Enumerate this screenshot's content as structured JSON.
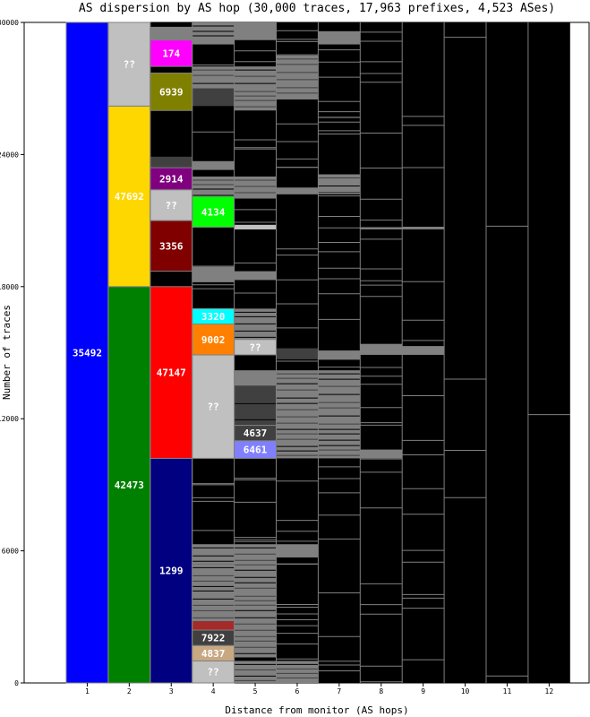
{
  "chart_data": {
    "type": "heatmap",
    "title": "AS dispersion by AS hop (30,000 traces, 17,963 prefixes, 4,523 ASes)",
    "xlabel": "Distance from monitor (AS hops)",
    "ylabel": "Number of traces",
    "ylim": [
      0,
      30000
    ],
    "y_ticks": [
      "0",
      "6000",
      "12000",
      "18000",
      "24000",
      "30000"
    ],
    "x_ticks": [
      "1",
      "2",
      "3",
      "4",
      "5",
      "6",
      "7",
      "8",
      "9",
      "10",
      "11",
      "12"
    ],
    "colors": {
      "background": "#000000",
      "separator": "#808080",
      "unknown": "#c0c0c0",
      "other_band": "#808080",
      "dark_band": "#404040"
    },
    "blocks": [
      {
        "hop": 1,
        "label": "35492",
        "y0": 0,
        "y1": 30000,
        "color": "#0000ff"
      },
      {
        "hop": 2,
        "label": "42473",
        "y0": 0,
        "y1": 18000,
        "color": "#008000"
      },
      {
        "hop": 2,
        "label": "47692",
        "y0": 18000,
        "y1": 26200,
        "color": "#ffd700"
      },
      {
        "hop": 2,
        "label": "??",
        "y0": 26200,
        "y1": 30000,
        "color": "#c0c0c0"
      },
      {
        "hop": 3,
        "label": "1299",
        "y0": 0,
        "y1": 10200,
        "color": "#000080"
      },
      {
        "hop": 3,
        "label": "47147",
        "y0": 10200,
        "y1": 18000,
        "color": "#ff0000"
      },
      {
        "hop": 3,
        "label": "3356",
        "y0": 18700,
        "y1": 21000,
        "color": "#800000"
      },
      {
        "hop": 3,
        "label": "??",
        "y0": 21000,
        "y1": 22400,
        "color": "#c0c0c0"
      },
      {
        "hop": 3,
        "label": "2914",
        "y0": 22400,
        "y1": 23400,
        "color": "#800080"
      },
      {
        "hop": 3,
        "label": "6939",
        "y0": 26000,
        "y1": 27700,
        "color": "#808000"
      },
      {
        "hop": 3,
        "label": "174",
        "y0": 28000,
        "y1": 29200,
        "color": "#ff00ff"
      },
      {
        "hop": 4,
        "label": "??",
        "y0": 0,
        "y1": 1000,
        "color": "#c0c0c0"
      },
      {
        "hop": 4,
        "label": "4837",
        "y0": 1000,
        "y1": 1700,
        "color": "#c8a882"
      },
      {
        "hop": 4,
        "label": "7922",
        "y0": 1700,
        "y1": 2400,
        "color": "#404040"
      },
      {
        "hop": 4,
        "label": "??",
        "y0": 10200,
        "y1": 14900,
        "color": "#c0c0c0"
      },
      {
        "hop": 4,
        "label": "9002",
        "y0": 14900,
        "y1": 16300,
        "color": "#ff8000"
      },
      {
        "hop": 4,
        "label": "3320",
        "y0": 16300,
        "y1": 17000,
        "color": "#00ffff"
      },
      {
        "hop": 4,
        "label": "4134",
        "y0": 20700,
        "y1": 22100,
        "color": "#00ff00"
      },
      {
        "hop": 5,
        "label": "6461",
        "y0": 10200,
        "y1": 11000,
        "color": "#8080ff"
      },
      {
        "hop": 5,
        "label": "4637",
        "y0": 11000,
        "y1": 11700,
        "color": "#404040"
      },
      {
        "hop": 5,
        "label": "??",
        "y0": 14900,
        "y1": 15600,
        "color": "#c0c0c0"
      }
    ],
    "bands": [
      {
        "hop": 3,
        "y0": 23400,
        "y1": 23900,
        "color": "#404040"
      },
      {
        "hop": 3,
        "y0": 29200,
        "y1": 29800,
        "color": "#808080"
      },
      {
        "hop": 4,
        "y0": 2400,
        "y1": 2800,
        "color": "#a52a2a"
      },
      {
        "hop": 4,
        "y0": 2800,
        "y1": 5400,
        "color": "#808080"
      },
      {
        "hop": 4,
        "y0": 5400,
        "y1": 6300,
        "color": "#808080"
      },
      {
        "hop": 4,
        "y0": 18200,
        "y1": 18900,
        "color": "#808080"
      },
      {
        "hop": 4,
        "y0": 22100,
        "y1": 23000,
        "color": "#808080"
      },
      {
        "hop": 4,
        "y0": 23300,
        "y1": 23700,
        "color": "#808080"
      },
      {
        "hop": 4,
        "y0": 26200,
        "y1": 27000,
        "color": "#404040"
      },
      {
        "hop": 4,
        "y0": 27000,
        "y1": 28000,
        "color": "#808080"
      },
      {
        "hop": 4,
        "y0": 29000,
        "y1": 30000,
        "color": "#808080"
      },
      {
        "hop": 5,
        "y0": 0,
        "y1": 1000,
        "color": "#808080"
      },
      {
        "hop": 5,
        "y0": 1200,
        "y1": 6300,
        "color": "#808080"
      },
      {
        "hop": 5,
        "y0": 11700,
        "y1": 13500,
        "color": "#404040"
      },
      {
        "hop": 5,
        "y0": 13500,
        "y1": 14200,
        "color": "#808080"
      },
      {
        "hop": 5,
        "y0": 15600,
        "y1": 17000,
        "color": "#808080"
      },
      {
        "hop": 5,
        "y0": 18300,
        "y1": 18700,
        "color": "#808080"
      },
      {
        "hop": 5,
        "y0": 20600,
        "y1": 20800,
        "color": "#c0c0c0"
      },
      {
        "hop": 5,
        "y0": 22000,
        "y1": 23000,
        "color": "#808080"
      },
      {
        "hop": 5,
        "y0": 26000,
        "y1": 28000,
        "color": "#808080"
      },
      {
        "hop": 5,
        "y0": 29200,
        "y1": 30000,
        "color": "#808080"
      },
      {
        "hop": 6,
        "y0": 0,
        "y1": 1000,
        "color": "#808080"
      },
      {
        "hop": 6,
        "y0": 10200,
        "y1": 14200,
        "color": "#808080"
      },
      {
        "hop": 6,
        "y0": 14700,
        "y1": 15200,
        "color": "#404040"
      },
      {
        "hop": 6,
        "y0": 5700,
        "y1": 6300,
        "color": "#808080"
      },
      {
        "hop": 6,
        "y0": 22200,
        "y1": 22500,
        "color": "#808080"
      },
      {
        "hop": 6,
        "y0": 26500,
        "y1": 28500,
        "color": "#808080"
      },
      {
        "hop": 7,
        "y0": 10200,
        "y1": 14200,
        "color": "#808080"
      },
      {
        "hop": 7,
        "y0": 14700,
        "y1": 15100,
        "color": "#808080"
      },
      {
        "hop": 7,
        "y0": 22200,
        "y1": 23100,
        "color": "#808080"
      },
      {
        "hop": 7,
        "y0": 29000,
        "y1": 29600,
        "color": "#808080"
      },
      {
        "hop": 8,
        "y0": 10200,
        "y1": 10600,
        "color": "#808080"
      },
      {
        "hop": 8,
        "y0": 14900,
        "y1": 15400,
        "color": "#808080"
      },
      {
        "hop": 8,
        "y0": 20600,
        "y1": 20700,
        "color": "#808080"
      },
      {
        "hop": 9,
        "y0": 14900,
        "y1": 15300,
        "color": "#808080"
      },
      {
        "hop": 9,
        "y0": 20600,
        "y1": 20700,
        "color": "#808080"
      }
    ],
    "lines": [
      {
        "hop": 3,
        "count": 6
      },
      {
        "hop": 4,
        "count": 40
      },
      {
        "hop": 5,
        "count": 30
      },
      {
        "hop": 6,
        "count": 40
      },
      {
        "hop": 7,
        "count": 40
      },
      {
        "hop": 8,
        "count": 30
      },
      {
        "hop": 9,
        "count": 18
      },
      {
        "hop": 10,
        "count": 4
      },
      {
        "hop": 11,
        "count": 2
      },
      {
        "hop": 12,
        "count": 1
      }
    ]
  }
}
